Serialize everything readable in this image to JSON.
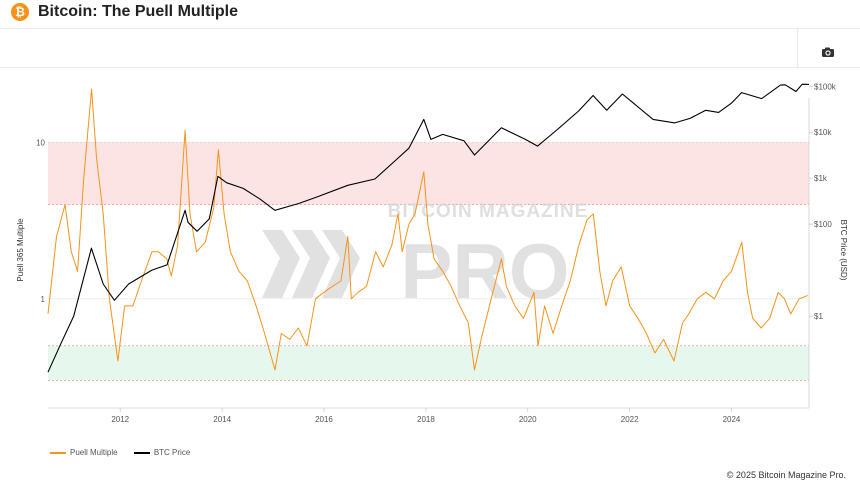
{
  "header": {
    "logo_glyph": "₿",
    "title": "Bitcoin: The Puell Multiple"
  },
  "toolbar": {
    "camera_icon": "camera-icon"
  },
  "credits": "© 2025 Bitcoin Magazine Pro.",
  "watermark": {
    "line1": "BITCOIN MAGAZINE",
    "line2": "PRO"
  },
  "colors": {
    "puell": "#f7931a",
    "btc": "#000000",
    "red_band": "#fde4e4",
    "green_band": "#e6f8ee",
    "band_line": "#e58a8a"
  },
  "chart_data": {
    "type": "line",
    "x_range": [
      "2010-08-01",
      "2025-07-10"
    ],
    "x_ticks": [
      "2012",
      "2014",
      "2016",
      "2018",
      "2020",
      "2022",
      "2024"
    ],
    "left_axis": {
      "label": "Puell 365 Multiple",
      "scale": "log",
      "min": 0.2,
      "max": 30,
      "ticks": [
        {
          "v": 1,
          "label": "1"
        },
        {
          "v": 10,
          "label": "10"
        }
      ]
    },
    "right_axis": {
      "label": "BTC Price (USD)",
      "scale": "log",
      "min": 0.01,
      "max": 250000,
      "ticks": [
        {
          "v": 1,
          "label": "$1"
        },
        {
          "v": 100,
          "label": "$100"
        },
        {
          "v": 1000,
          "label": "$1k"
        },
        {
          "v": 10000,
          "label": "$10k"
        },
        {
          "v": 100000,
          "label": "$100k"
        }
      ]
    },
    "bands": [
      {
        "zone": "overvalued",
        "from": 4,
        "to": 10
      },
      {
        "zone": "undervalued",
        "from": 0.3,
        "to": 0.5
      }
    ],
    "series": [
      {
        "name": "Puell Multiple",
        "axis": "left",
        "points": [
          [
            "2010-08-01",
            0.8
          ],
          [
            "2010-10-01",
            2.5
          ],
          [
            "2010-12-01",
            4.0
          ],
          [
            "2011-01-15",
            2.0
          ],
          [
            "2011-03-01",
            1.5
          ],
          [
            "2011-04-15",
            6.0
          ],
          [
            "2011-06-10",
            22.0
          ],
          [
            "2011-07-15",
            8.0
          ],
          [
            "2011-09-01",
            3.5
          ],
          [
            "2011-10-15",
            1.0
          ],
          [
            "2011-12-15",
            0.4
          ],
          [
            "2012-02-01",
            0.9
          ],
          [
            "2012-04-01",
            0.9
          ],
          [
            "2012-06-01",
            1.3
          ],
          [
            "2012-08-15",
            2.0
          ],
          [
            "2012-10-01",
            2.0
          ],
          [
            "2012-11-30",
            1.8
          ],
          [
            "2013-01-01",
            1.4
          ],
          [
            "2013-02-15",
            2.2
          ],
          [
            "2013-04-10",
            12.0
          ],
          [
            "2013-05-15",
            3.5
          ],
          [
            "2013-07-01",
            2.0
          ],
          [
            "2013-09-01",
            2.3
          ],
          [
            "2013-11-01",
            3.8
          ],
          [
            "2013-12-05",
            9.0
          ],
          [
            "2014-01-15",
            3.5
          ],
          [
            "2014-03-01",
            2.0
          ],
          [
            "2014-05-01",
            1.5
          ],
          [
            "2014-07-01",
            1.3
          ],
          [
            "2014-09-01",
            0.9
          ],
          [
            "2014-11-01",
            0.6
          ],
          [
            "2015-01-15",
            0.35
          ],
          [
            "2015-03-01",
            0.6
          ],
          [
            "2015-05-01",
            0.55
          ],
          [
            "2015-07-01",
            0.65
          ],
          [
            "2015-09-01",
            0.5
          ],
          [
            "2015-11-01",
            1.0
          ],
          [
            "2016-01-01",
            1.1
          ],
          [
            "2016-03-01",
            1.2
          ],
          [
            "2016-05-01",
            1.3
          ],
          [
            "2016-06-20",
            2.5
          ],
          [
            "2016-07-15",
            1.0
          ],
          [
            "2016-09-01",
            1.1
          ],
          [
            "2016-11-01",
            1.2
          ],
          [
            "2017-01-05",
            2.0
          ],
          [
            "2017-03-01",
            1.6
          ],
          [
            "2017-05-01",
            2.2
          ],
          [
            "2017-06-15",
            3.5
          ],
          [
            "2017-07-15",
            2.0
          ],
          [
            "2017-09-01",
            3.0
          ],
          [
            "2017-10-15",
            3.5
          ],
          [
            "2017-12-17",
            6.5
          ],
          [
            "2018-01-15",
            3.0
          ],
          [
            "2018-03-01",
            1.8
          ],
          [
            "2018-05-01",
            1.5
          ],
          [
            "2018-07-01",
            1.2
          ],
          [
            "2018-09-01",
            0.9
          ],
          [
            "2018-11-01",
            0.7
          ],
          [
            "2018-12-15",
            0.35
          ],
          [
            "2019-02-01",
            0.55
          ],
          [
            "2019-04-01",
            0.9
          ],
          [
            "2019-06-26",
            1.8
          ],
          [
            "2019-08-01",
            1.2
          ],
          [
            "2019-10-01",
            0.9
          ],
          [
            "2019-12-01",
            0.75
          ],
          [
            "2020-02-15",
            1.1
          ],
          [
            "2020-03-15",
            0.5
          ],
          [
            "2020-05-01",
            0.9
          ],
          [
            "2020-07-01",
            0.6
          ],
          [
            "2020-09-01",
            0.9
          ],
          [
            "2020-11-01",
            1.3
          ],
          [
            "2021-01-01",
            2.2
          ],
          [
            "2021-03-01",
            3.2
          ],
          [
            "2021-04-15",
            3.5
          ],
          [
            "2021-06-01",
            1.5
          ],
          [
            "2021-07-15",
            0.9
          ],
          [
            "2021-09-01",
            1.3
          ],
          [
            "2021-11-01",
            1.6
          ],
          [
            "2022-01-01",
            0.9
          ],
          [
            "2022-03-01",
            0.75
          ],
          [
            "2022-05-01",
            0.6
          ],
          [
            "2022-07-01",
            0.45
          ],
          [
            "2022-09-01",
            0.55
          ],
          [
            "2022-11-15",
            0.4
          ],
          [
            "2023-01-15",
            0.7
          ],
          [
            "2023-03-01",
            0.8
          ],
          [
            "2023-05-01",
            1.0
          ],
          [
            "2023-07-01",
            1.1
          ],
          [
            "2023-09-01",
            1.0
          ],
          [
            "2023-11-01",
            1.3
          ],
          [
            "2024-01-01",
            1.5
          ],
          [
            "2024-03-15",
            2.3
          ],
          [
            "2024-04-25",
            1.1
          ],
          [
            "2024-06-01",
            0.75
          ],
          [
            "2024-08-01",
            0.65
          ],
          [
            "2024-10-01",
            0.75
          ],
          [
            "2024-12-01",
            1.1
          ],
          [
            "2025-01-15",
            1.0
          ],
          [
            "2025-03-01",
            0.8
          ],
          [
            "2025-05-01",
            1.0
          ],
          [
            "2025-07-01",
            1.05
          ]
        ]
      },
      {
        "name": "BTC Price",
        "axis": "right",
        "points": [
          [
            "2010-08-01",
            0.06
          ],
          [
            "2010-11-01",
            0.25
          ],
          [
            "2011-02-01",
            1.0
          ],
          [
            "2011-06-08",
            30
          ],
          [
            "2011-09-01",
            5
          ],
          [
            "2011-11-20",
            2.2
          ],
          [
            "2012-03-01",
            5
          ],
          [
            "2012-08-15",
            10
          ],
          [
            "2012-12-01",
            13
          ],
          [
            "2013-04-10",
            200
          ],
          [
            "2013-05-01",
            110
          ],
          [
            "2013-07-05",
            70
          ],
          [
            "2013-10-01",
            130
          ],
          [
            "2013-12-01",
            1100
          ],
          [
            "2014-02-01",
            800
          ],
          [
            "2014-06-01",
            600
          ],
          [
            "2014-10-01",
            350
          ],
          [
            "2015-01-14",
            200
          ],
          [
            "2015-07-01",
            280
          ],
          [
            "2015-11-01",
            380
          ],
          [
            "2016-06-20",
            700
          ],
          [
            "2016-12-31",
            960
          ],
          [
            "2017-06-01",
            2500
          ],
          [
            "2017-09-01",
            4500
          ],
          [
            "2017-12-17",
            19000
          ],
          [
            "2018-02-06",
            7000
          ],
          [
            "2018-05-01",
            9000
          ],
          [
            "2018-10-01",
            6500
          ],
          [
            "2018-12-15",
            3200
          ],
          [
            "2019-06-26",
            12500
          ],
          [
            "2019-12-15",
            7000
          ],
          [
            "2020-03-12",
            5000
          ],
          [
            "2020-08-01",
            11500
          ],
          [
            "2020-12-31",
            29000
          ],
          [
            "2021-04-14",
            63000
          ],
          [
            "2021-07-20",
            30000
          ],
          [
            "2021-11-10",
            68000
          ],
          [
            "2022-06-18",
            19000
          ],
          [
            "2022-11-21",
            16000
          ],
          [
            "2023-03-10",
            20000
          ],
          [
            "2023-07-01",
            30000
          ],
          [
            "2023-10-01",
            27000
          ],
          [
            "2024-01-01",
            43000
          ],
          [
            "2024-03-14",
            73000
          ],
          [
            "2024-08-05",
            54000
          ],
          [
            "2024-12-17",
            106000
          ],
          [
            "2025-01-20",
            108000
          ],
          [
            "2025-04-08",
            77000
          ],
          [
            "2025-05-22",
            111000
          ],
          [
            "2025-07-10",
            110000
          ]
        ]
      }
    ],
    "legend_position": "bottom-left"
  }
}
